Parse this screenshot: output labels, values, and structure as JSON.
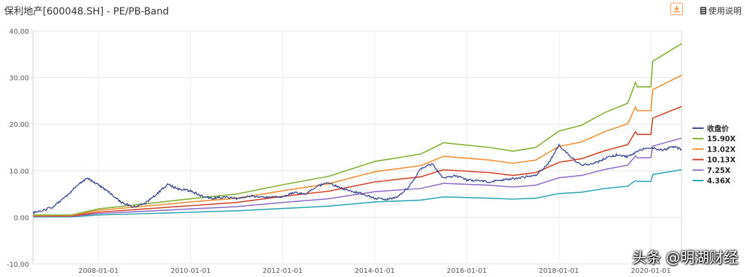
{
  "header": {
    "title": "保利地产[600048.SH] - PE/PB-Band",
    "download_icon": "download-icon",
    "help_label": "使用说明",
    "help_icon": "document-icon"
  },
  "watermark": "头条 @明湖财经",
  "chart_data": {
    "type": "line",
    "title": "保利地产[600048.SH] - PE/PB-Band",
    "xlabel": "",
    "ylabel": "",
    "xlim": [
      "2006-07-31",
      "2020-08-31"
    ],
    "ylim": [
      -10,
      40
    ],
    "yticks": [
      "-10.00",
      "0.00",
      "10.00",
      "20.00",
      "30.00",
      "40.00"
    ],
    "xticks": [
      "2008-01-01",
      "2010-01-01",
      "2012-01-01",
      "2014-01-01",
      "2016-01-01",
      "2018-01-01",
      "2020-01-01"
    ],
    "grid": true,
    "legend_position": "right",
    "series": [
      {
        "name": "收盘价",
        "color": "#2f3f8f",
        "points": [
          [
            "2006-07-31",
            1.0
          ],
          [
            "2006-10-01",
            1.3
          ],
          [
            "2007-01-01",
            2.2
          ],
          [
            "2007-04-01",
            4.0
          ],
          [
            "2007-07-01",
            6.5
          ],
          [
            "2007-10-01",
            8.4
          ],
          [
            "2008-01-01",
            7.0
          ],
          [
            "2008-04-01",
            5.2
          ],
          [
            "2008-07-01",
            3.2
          ],
          [
            "2008-10-01",
            2.3
          ],
          [
            "2009-01-01",
            2.9
          ],
          [
            "2009-04-01",
            4.8
          ],
          [
            "2009-07-01",
            7.1
          ],
          [
            "2009-10-01",
            6.0
          ],
          [
            "2010-01-01",
            5.7
          ],
          [
            "2010-04-01",
            4.5
          ],
          [
            "2010-07-01",
            4.1
          ],
          [
            "2010-10-01",
            4.3
          ],
          [
            "2011-01-01",
            4.0
          ],
          [
            "2011-04-01",
            4.6
          ],
          [
            "2011-07-01",
            4.4
          ],
          [
            "2011-10-01",
            4.3
          ],
          [
            "2012-01-01",
            4.5
          ],
          [
            "2012-04-01",
            5.3
          ],
          [
            "2012-07-01",
            5.0
          ],
          [
            "2012-10-01",
            6.7
          ],
          [
            "2013-01-01",
            7.4
          ],
          [
            "2013-04-01",
            6.3
          ],
          [
            "2013-07-01",
            5.6
          ],
          [
            "2013-10-01",
            5.0
          ],
          [
            "2014-01-01",
            4.1
          ],
          [
            "2014-04-01",
            3.8
          ],
          [
            "2014-07-01",
            4.4
          ],
          [
            "2014-10-01",
            6.6
          ],
          [
            "2015-01-01",
            10.5
          ],
          [
            "2015-04-01",
            11.5
          ],
          [
            "2015-07-01",
            8.3
          ],
          [
            "2015-10-01",
            8.9
          ],
          [
            "2016-01-01",
            8.0
          ],
          [
            "2016-04-01",
            7.8
          ],
          [
            "2016-07-01",
            7.6
          ],
          [
            "2016-10-01",
            8.0
          ],
          [
            "2017-01-01",
            8.3
          ],
          [
            "2017-04-01",
            8.6
          ],
          [
            "2017-07-01",
            9.0
          ],
          [
            "2017-10-01",
            11.2
          ],
          [
            "2018-01-01",
            15.5
          ],
          [
            "2018-04-01",
            13.0
          ],
          [
            "2018-07-01",
            11.2
          ],
          [
            "2018-10-01",
            11.5
          ],
          [
            "2019-01-01",
            12.6
          ],
          [
            "2019-04-01",
            13.4
          ],
          [
            "2019-07-01",
            13.0
          ],
          [
            "2019-10-01",
            14.4
          ],
          [
            "2020-01-01",
            15.0
          ],
          [
            "2020-04-01",
            14.4
          ],
          [
            "2020-07-01",
            15.2
          ],
          [
            "2020-08-31",
            14.6
          ]
        ]
      },
      {
        "name": "15.90X",
        "color": "#7fad2e",
        "points": [
          [
            "2006-07-31",
            0.5
          ],
          [
            "2007-06-01",
            0.5
          ],
          [
            "2008-01-01",
            1.8
          ],
          [
            "2009-01-01",
            2.9
          ],
          [
            "2010-01-01",
            4.0
          ],
          [
            "2011-01-01",
            5.0
          ],
          [
            "2012-01-01",
            7.0
          ],
          [
            "2013-01-01",
            8.8
          ],
          [
            "2014-01-01",
            12.0
          ],
          [
            "2015-01-01",
            13.6
          ],
          [
            "2015-07-01",
            16.0
          ],
          [
            "2016-07-01",
            15.0
          ],
          [
            "2017-01-01",
            14.2
          ],
          [
            "2017-07-01",
            15.0
          ],
          [
            "2018-01-01",
            18.5
          ],
          [
            "2018-07-01",
            19.8
          ],
          [
            "2019-01-01",
            22.5
          ],
          [
            "2019-07-01",
            24.5
          ],
          [
            "2019-09-01",
            29.0
          ],
          [
            "2019-09-15",
            28.0
          ],
          [
            "2020-01-01",
            28.0
          ],
          [
            "2020-01-15",
            33.5
          ],
          [
            "2020-08-31",
            37.3
          ]
        ]
      },
      {
        "name": "13.02X",
        "color": "#f08c2d",
        "points": [
          [
            "2006-07-31",
            0.4
          ],
          [
            "2007-06-01",
            0.4
          ],
          [
            "2008-01-01",
            1.5
          ],
          [
            "2009-01-01",
            2.4
          ],
          [
            "2010-01-01",
            3.3
          ],
          [
            "2011-01-01",
            4.1
          ],
          [
            "2012-01-01",
            5.7
          ],
          [
            "2013-01-01",
            7.2
          ],
          [
            "2014-01-01",
            9.8
          ],
          [
            "2015-01-01",
            11.1
          ],
          [
            "2015-07-01",
            13.1
          ],
          [
            "2016-07-01",
            12.3
          ],
          [
            "2017-01-01",
            11.6
          ],
          [
            "2017-07-01",
            12.3
          ],
          [
            "2018-01-01",
            15.2
          ],
          [
            "2018-07-01",
            16.2
          ],
          [
            "2019-01-01",
            18.4
          ],
          [
            "2019-07-01",
            20.1
          ],
          [
            "2019-09-01",
            23.7
          ],
          [
            "2019-09-15",
            22.9
          ],
          [
            "2020-01-01",
            22.9
          ],
          [
            "2020-01-15",
            27.4
          ],
          [
            "2020-08-31",
            30.5
          ]
        ]
      },
      {
        "name": "10.13X",
        "color": "#d23c21",
        "points": [
          [
            "2006-07-31",
            0.3
          ],
          [
            "2007-06-01",
            0.3
          ],
          [
            "2008-01-01",
            1.1
          ],
          [
            "2009-01-01",
            1.8
          ],
          [
            "2010-01-01",
            2.5
          ],
          [
            "2011-01-01",
            3.2
          ],
          [
            "2012-01-01",
            4.5
          ],
          [
            "2013-01-01",
            5.6
          ],
          [
            "2014-01-01",
            7.6
          ],
          [
            "2015-01-01",
            8.7
          ],
          [
            "2015-07-01",
            10.2
          ],
          [
            "2016-07-01",
            9.6
          ],
          [
            "2017-01-01",
            9.0
          ],
          [
            "2017-07-01",
            9.6
          ],
          [
            "2018-01-01",
            11.8
          ],
          [
            "2018-07-01",
            12.6
          ],
          [
            "2019-01-01",
            14.3
          ],
          [
            "2019-07-01",
            15.6
          ],
          [
            "2019-09-01",
            18.4
          ],
          [
            "2019-09-15",
            17.8
          ],
          [
            "2020-01-01",
            17.8
          ],
          [
            "2020-01-15",
            21.3
          ],
          [
            "2020-08-31",
            23.8
          ]
        ]
      },
      {
        "name": "7.25X",
        "color": "#8e6bc7",
        "points": [
          [
            "2006-07-31",
            0.2
          ],
          [
            "2007-06-01",
            0.2
          ],
          [
            "2008-01-01",
            0.8
          ],
          [
            "2009-01-01",
            1.3
          ],
          [
            "2010-01-01",
            1.8
          ],
          [
            "2011-01-01",
            2.3
          ],
          [
            "2012-01-01",
            3.2
          ],
          [
            "2013-01-01",
            4.0
          ],
          [
            "2014-01-01",
            5.5
          ],
          [
            "2015-01-01",
            6.2
          ],
          [
            "2015-07-01",
            7.3
          ],
          [
            "2016-07-01",
            6.9
          ],
          [
            "2017-01-01",
            6.5
          ],
          [
            "2017-07-01",
            6.9
          ],
          [
            "2018-01-01",
            8.5
          ],
          [
            "2018-07-01",
            9.0
          ],
          [
            "2019-01-01",
            10.3
          ],
          [
            "2019-07-01",
            11.2
          ],
          [
            "2019-09-01",
            13.2
          ],
          [
            "2019-09-15",
            12.8
          ],
          [
            "2020-01-01",
            12.8
          ],
          [
            "2020-01-15",
            15.3
          ],
          [
            "2020-08-31",
            17.0
          ]
        ]
      },
      {
        "name": "4.36X",
        "color": "#2aa3b3",
        "points": [
          [
            "2006-07-31",
            0.1
          ],
          [
            "2007-06-01",
            0.1
          ],
          [
            "2008-01-01",
            0.5
          ],
          [
            "2009-01-01",
            0.8
          ],
          [
            "2010-01-01",
            1.1
          ],
          [
            "2011-01-01",
            1.4
          ],
          [
            "2012-01-01",
            1.9
          ],
          [
            "2013-01-01",
            2.4
          ],
          [
            "2014-01-01",
            3.3
          ],
          [
            "2015-01-01",
            3.7
          ],
          [
            "2015-07-01",
            4.4
          ],
          [
            "2016-07-01",
            4.1
          ],
          [
            "2017-01-01",
            3.9
          ],
          [
            "2017-07-01",
            4.1
          ],
          [
            "2018-01-01",
            5.1
          ],
          [
            "2018-07-01",
            5.4
          ],
          [
            "2019-01-01",
            6.2
          ],
          [
            "2019-07-01",
            6.7
          ],
          [
            "2019-09-01",
            7.9
          ],
          [
            "2019-09-15",
            7.7
          ],
          [
            "2020-01-01",
            7.7
          ],
          [
            "2020-01-15",
            9.2
          ],
          [
            "2020-08-31",
            10.2
          ]
        ]
      }
    ]
  }
}
